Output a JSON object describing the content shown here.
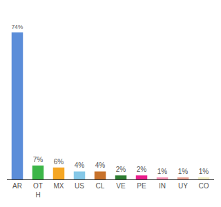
{
  "chart_data": {
    "type": "bar",
    "categories": [
      "AR",
      "OT\nH",
      "MX",
      "US",
      "CL",
      "VE",
      "PE",
      "IN",
      "UY",
      "CO"
    ],
    "values": [
      74,
      7,
      6,
      4,
      4,
      2,
      2,
      1,
      1,
      1
    ],
    "value_labels": [
      "74%",
      "7%",
      "6%",
      "4%",
      "4%",
      "2%",
      "2%",
      "1%",
      "1%",
      "1%"
    ],
    "colors": [
      "#5b8dd9",
      "#3cb648",
      "#f5a623",
      "#85c8e8",
      "#c8722a",
      "#2e7d32",
      "#e91e8c",
      "#f48fb1",
      "#e8a090",
      "#f0ecc0"
    ],
    "ylim": [
      0,
      82
    ],
    "data_labels": true,
    "tick_labels": "x",
    "grid": false
  }
}
